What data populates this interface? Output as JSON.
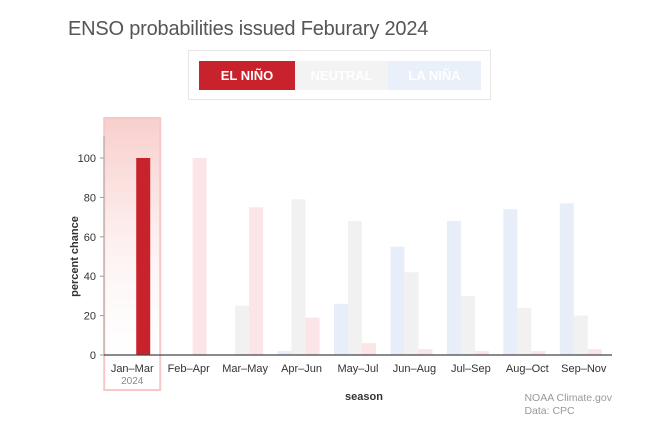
{
  "title": "ENSO probabilities issued Feburary 2024",
  "legend": [
    {
      "label": "EL NIÑO",
      "active": true,
      "bg": "#c8232c",
      "text": "#ffffff"
    },
    {
      "label": "NEUTRAL",
      "active": false,
      "bg": "#f3f3f3",
      "text": "#ffffff"
    },
    {
      "label": "LA NIÑA",
      "active": false,
      "bg": "#e9f0fa",
      "text": "#ffffff"
    }
  ],
  "colors": {
    "el_nino_active": "#c8232c",
    "el_nino_faded": "#fbe5e6",
    "neutral_faded": "#f1f1f1",
    "la_nina_faded": "#e7eef9",
    "highlight": "#f6c9c7"
  },
  "credit": {
    "line1": "NOAA Climate.gov",
    "line2": "Data: CPC"
  },
  "chart_data": {
    "type": "bar",
    "ylabel": "percent chance",
    "xlabel": "season",
    "ylim": [
      0,
      100
    ],
    "yticks": [
      0,
      20,
      40,
      60,
      80,
      100
    ],
    "categories": [
      "Jan–Mar",
      "Feb–Apr",
      "Mar–May",
      "Apr–Jun",
      "May–Jul",
      "Jun–Aug",
      "Jul–Sep",
      "Aug–Oct",
      "Sep–Nov"
    ],
    "category_sublabels": [
      "2024",
      "",
      "",
      "",
      "",
      "",
      "",
      "",
      ""
    ],
    "highlighted_category": 0,
    "series": [
      {
        "name": "LA NIÑA",
        "values": [
          0,
          0,
          0,
          2,
          26,
          55,
          68,
          74,
          77
        ]
      },
      {
        "name": "NEUTRAL",
        "values": [
          0,
          0,
          25,
          79,
          68,
          42,
          30,
          24,
          20
        ]
      },
      {
        "name": "EL NIÑO",
        "values": [
          100,
          100,
          75,
          19,
          6,
          3,
          2,
          2,
          3
        ]
      }
    ]
  }
}
